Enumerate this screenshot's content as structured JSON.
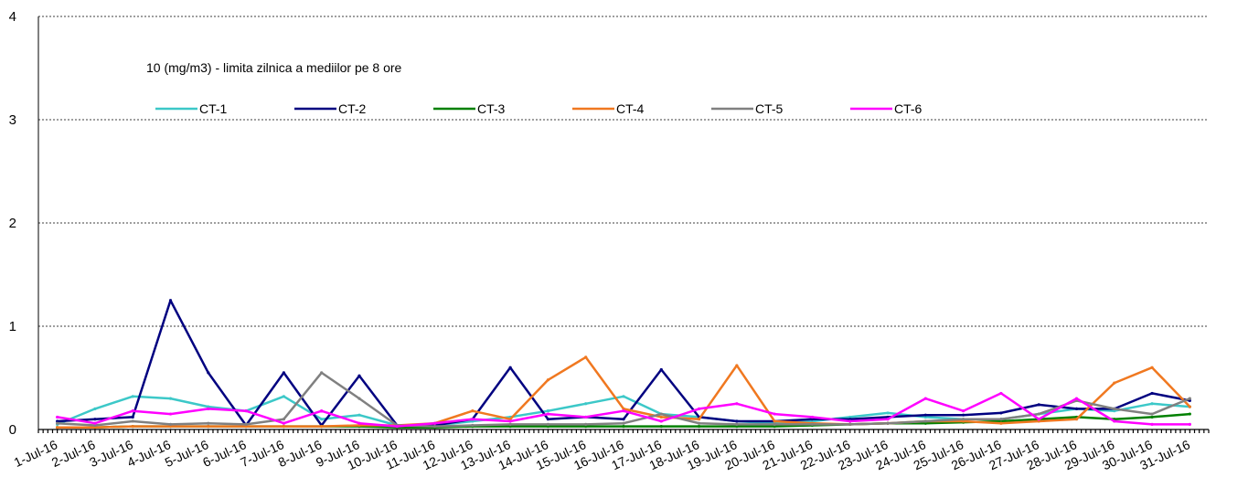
{
  "chart_data": {
    "type": "line",
    "title": "",
    "note": "10 (mg/m3) - limita zilnica a mediilor pe 8 ore",
    "xlabel": "",
    "ylabel": "",
    "ylim": [
      0,
      4
    ],
    "yticks": [
      "0",
      "1",
      "2",
      "3",
      "4"
    ],
    "grid": true,
    "legend_position": "top-left",
    "categories": [
      "1-Jul-16",
      "2-Jul-16",
      "3-Jul-16",
      "4-Jul-16",
      "5-Jul-16",
      "6-Jul-16",
      "7-Jul-16",
      "8-Jul-16",
      "9-Jul-16",
      "10-Jul-16",
      "11-Jul-16",
      "12-Jul-16",
      "13-Jul-16",
      "14-Jul-16",
      "15-Jul-16",
      "16-Jul-16",
      "17-Jul-16",
      "18-Jul-16",
      "19-Jul-16",
      "20-Jul-16",
      "21-Jul-16",
      "22-Jul-16",
      "23-Jul-16",
      "24-Jul-16",
      "25-Jul-16",
      "26-Jul-16",
      "27-Jul-16",
      "28-Jul-16",
      "29-Jul-16",
      "30-Jul-16",
      "31-Jul-16"
    ],
    "series": [
      {
        "name": "CT-1",
        "color": "#3cc8c8",
        "values": [
          0.05,
          0.2,
          0.32,
          0.3,
          0.22,
          0.18,
          0.32,
          0.1,
          0.14,
          0.04,
          0.04,
          0.08,
          0.12,
          0.18,
          0.25,
          0.32,
          0.15,
          0.12,
          0.08,
          0.06,
          0.08,
          0.12,
          0.16,
          0.12,
          0.1,
          0.1,
          0.15,
          0.2,
          0.18,
          0.25,
          0.22
        ]
      },
      {
        "name": "CT-2",
        "color": "#000080",
        "values": [
          0.08,
          0.1,
          0.12,
          1.25,
          0.55,
          0.04,
          0.55,
          0.04,
          0.52,
          0.04,
          0.04,
          0.1,
          0.6,
          0.1,
          0.12,
          0.1,
          0.58,
          0.12,
          0.08,
          0.08,
          0.1,
          0.1,
          0.12,
          0.14,
          0.14,
          0.16,
          0.24,
          0.2,
          0.2,
          0.35,
          0.28
        ]
      },
      {
        "name": "CT-3",
        "color": "#008000",
        "values": [
          0.02,
          0.02,
          0.03,
          0.03,
          0.03,
          0.03,
          0.03,
          0.03,
          0.03,
          0.02,
          0.02,
          0.03,
          0.03,
          0.03,
          0.03,
          0.03,
          0.03,
          0.03,
          0.03,
          0.03,
          0.04,
          0.05,
          0.06,
          0.06,
          0.07,
          0.08,
          0.1,
          0.12,
          0.1,
          0.12,
          0.15
        ]
      },
      {
        "name": "CT-4",
        "color": "#f07820",
        "values": [
          0.02,
          0.02,
          0.03,
          0.03,
          0.03,
          0.03,
          0.03,
          0.03,
          0.04,
          0.04,
          0.06,
          0.18,
          0.1,
          0.48,
          0.7,
          0.2,
          0.12,
          0.1,
          0.62,
          0.08,
          0.06,
          0.05,
          0.06,
          0.08,
          0.08,
          0.06,
          0.08,
          0.1,
          0.45,
          0.6,
          0.22
        ]
      },
      {
        "name": "CT-5",
        "color": "#808080",
        "values": [
          0.06,
          0.04,
          0.08,
          0.05,
          0.06,
          0.05,
          0.1,
          0.55,
          0.3,
          0.04,
          0.03,
          0.04,
          0.05,
          0.05,
          0.05,
          0.06,
          0.15,
          0.06,
          0.05,
          0.05,
          0.05,
          0.05,
          0.06,
          0.08,
          0.1,
          0.1,
          0.15,
          0.28,
          0.2,
          0.15,
          0.3
        ]
      },
      {
        "name": "CT-6",
        "color": "#ff00ff",
        "values": [
          0.12,
          0.06,
          0.18,
          0.15,
          0.2,
          0.18,
          0.06,
          0.18,
          0.06,
          0.03,
          0.06,
          0.1,
          0.08,
          0.15,
          0.12,
          0.18,
          0.08,
          0.2,
          0.25,
          0.15,
          0.12,
          0.08,
          0.1,
          0.3,
          0.18,
          0.35,
          0.1,
          0.3,
          0.08,
          0.05,
          0.05
        ]
      }
    ]
  }
}
